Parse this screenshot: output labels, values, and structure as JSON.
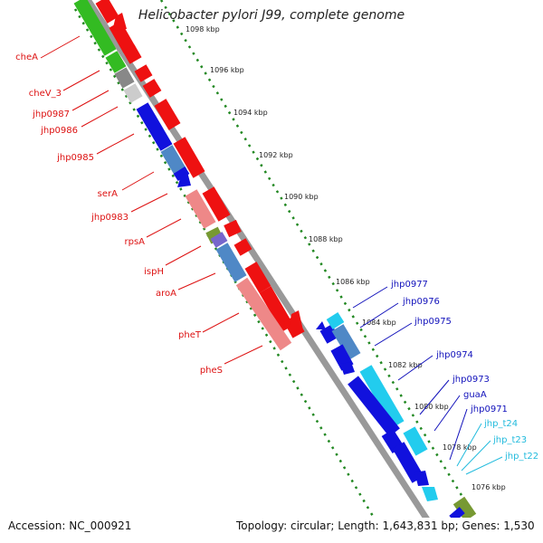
{
  "title": "Helicobacter pylori J99, complete genome",
  "footer": {
    "accession": "Accession: NC_000921",
    "summary": "Topology: circular; Length: 1,643,831 bp; Genes: 1,530"
  },
  "colors": {
    "forward_cds": "#ee1111",
    "reverse_cds": "#1111dd",
    "trna": "#22ccee",
    "steelblue": "#4f88c6",
    "pink": "#ee8888",
    "green_feature": "#33bb22",
    "olive_feature": "#779933",
    "gray_feature": "#888888",
    "backbone": "#999999",
    "tick": "#228822",
    "label_red": "#dd1111",
    "label_blue": "#1111bb",
    "label_cyan": "#22bbdd"
  },
  "ruler": {
    "unit": "kbp",
    "ticks": [
      "1098 kbp",
      "1096 kbp",
      "1094 kbp",
      "1092 kbp",
      "1090 kbp",
      "1088 kbp",
      "1086 kbp",
      "1084 kbp",
      "1082 kbp",
      "1080 kbp",
      "1078 kbp",
      "1076 kbp"
    ]
  },
  "genes_left": [
    "cheA",
    "cheV_3",
    "jhp0987",
    "jhp0986",
    "jhp0985",
    "serA",
    "jhp0983",
    "rpsA",
    "ispH",
    "aroA",
    "pheT",
    "pheS"
  ],
  "genes_right": [
    "jhp0977",
    "jhp0976",
    "jhp0975",
    "jhp0974",
    "jhp0973",
    "guaA",
    "jhp0971",
    "jhp_t24",
    "jhp_t23",
    "jhp_t22"
  ]
}
